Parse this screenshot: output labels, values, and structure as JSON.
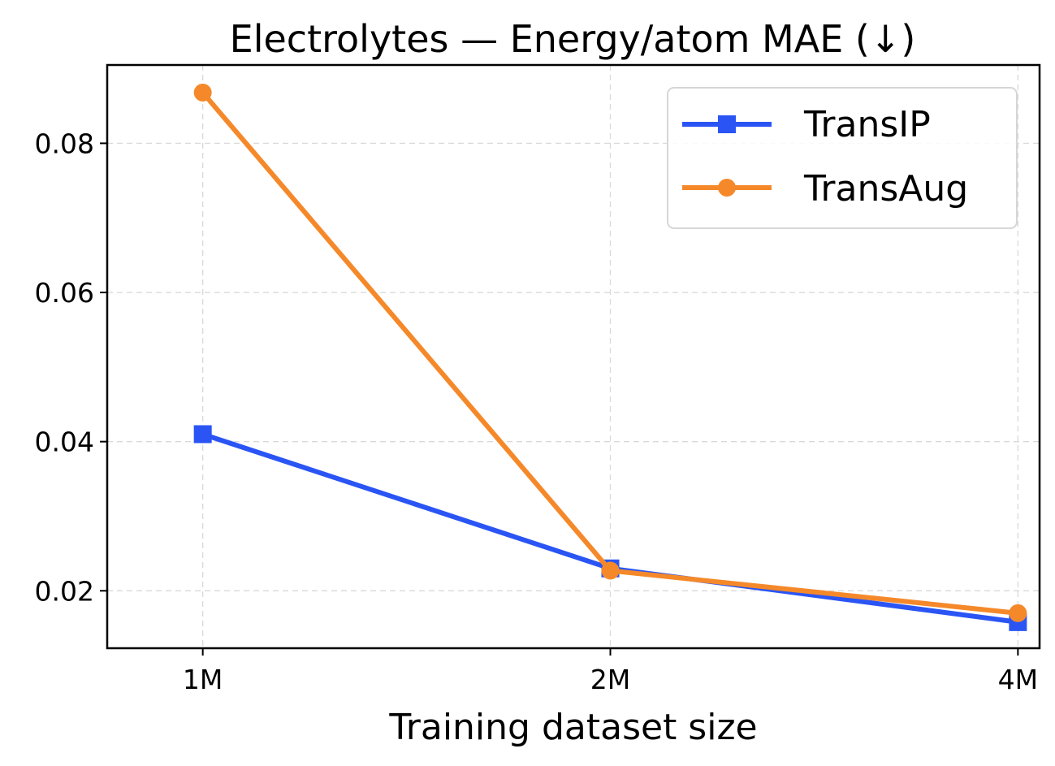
{
  "chart_data": {
    "type": "line",
    "title": "Electrolytes — Energy/atom MAE (↓)",
    "xlabel": "Training dataset size",
    "ylabel": "",
    "x": [
      1,
      2,
      4
    ],
    "x_tick_labels": [
      "1M",
      "2M",
      "4M"
    ],
    "xlim": [
      0.85,
      4.15
    ],
    "ylim": [
      0.0123,
      0.0905
    ],
    "y_ticks": [
      0.02,
      0.04,
      0.06,
      0.08
    ],
    "y_tick_labels": [
      "0.02",
      "0.04",
      "0.06",
      "0.08"
    ],
    "grid": true,
    "legend_position": "top-right",
    "series": [
      {
        "name": "TransIP",
        "values": [
          0.041,
          0.023,
          0.0158
        ],
        "color": "#2a55f4",
        "marker": "square"
      },
      {
        "name": "TransAug",
        "values": [
          0.0868,
          0.0227,
          0.017
        ],
        "color": "#f5892a",
        "marker": "circle"
      }
    ]
  }
}
